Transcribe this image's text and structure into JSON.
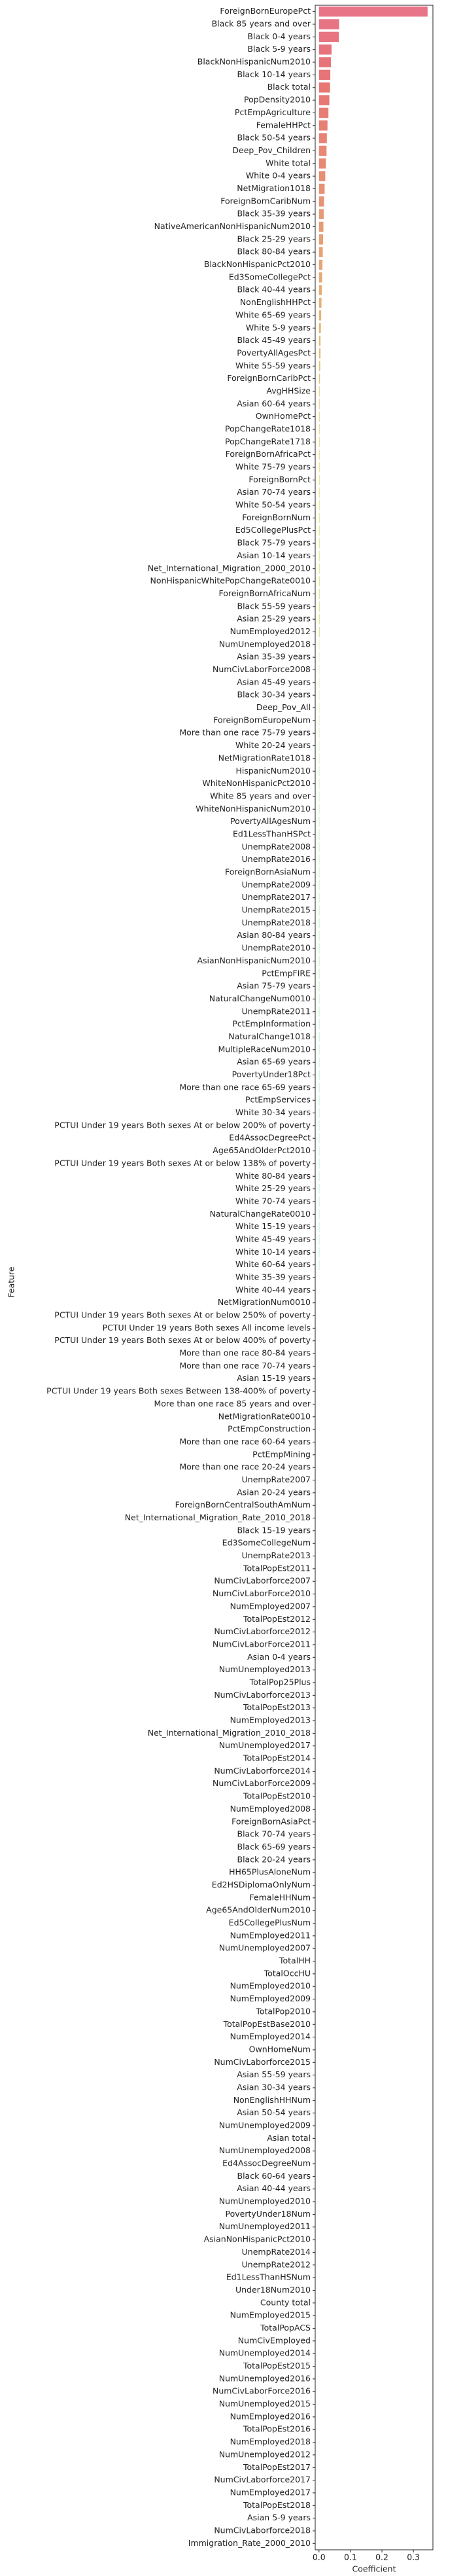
{
  "chart_data": {
    "type": "barh",
    "xlabel": "Coefficient",
    "ylabel": "Feature",
    "palette": "husl",
    "xlim": [
      -0.012,
      0.362
    ],
    "xticks": [
      {
        "value": 0,
        "label": "0.0"
      },
      0.1,
      0.2,
      0.3
    ],
    "categories": [
      "ForeignBornEuropePct",
      "Black 85 years and over",
      "Black 0-4 years",
      "Black 5-9 years",
      "BlackNonHispanicNum2010",
      "Black 10-14 years",
      "Black total",
      "PopDensity2010",
      "PctEmpAgriculture",
      "FemaleHHPct",
      "Black 50-54 years",
      "Deep_Pov_Children",
      "White total",
      "White 0-4 years",
      "NetMigration1018",
      "ForeignBornCaribNum",
      "Black 35-39 years",
      "NativeAmericanNonHispanicNum2010",
      "Black 25-29 years",
      "Black 80-84 years",
      "BlackNonHispanicPct2010",
      "Ed3SomeCollegePct",
      "Black 40-44 years",
      "NonEnglishHHPct",
      "White 65-69 years",
      "White 5-9 years",
      "Black 45-49 years",
      "PovertyAllAgesPct",
      "White 55-59 years",
      "ForeignBornCaribPct",
      "AvgHHSize",
      "Asian 60-64 years",
      "OwnHomePct",
      "PopChangeRate1018",
      "PopChangeRate1718",
      "ForeignBornAfricaPct",
      "White 75-79 years",
      "ForeignBornPct",
      "Asian 70-74 years",
      "White 50-54 years",
      "ForeignBornNum",
      "Ed5CollegePlusPct",
      "Black 75-79 years",
      "Asian 10-14 years",
      "Net_International_Migration_2000_2010",
      "NonHispanicWhitePopChangeRate0010",
      "ForeignBornAfricaNum",
      "Black 55-59 years",
      "Asian 25-29 years",
      "NumEmployed2012",
      "NumUnemployed2018",
      "Asian 35-39 years",
      "NumCivLaborForce2008",
      "Asian 45-49 years",
      "Black 30-34 years",
      "Deep_Pov_All",
      "ForeignBornEuropeNum",
      "More than one race 75-79 years",
      "White 20-24 years",
      "NetMigrationRate1018",
      "HispanicNum2010",
      "WhiteNonHispanicPct2010",
      "White 85 years and over",
      "WhiteNonHispanicNum2010",
      "PovertyAllAgesNum",
      "Ed1LessThanHSPct",
      "UnempRate2008",
      "UnempRate2016",
      "ForeignBornAsiaNum",
      "UnempRate2009",
      "UnempRate2017",
      "UnempRate2015",
      "UnempRate2018",
      "Asian 80-84 years",
      "UnempRate2010",
      "AsianNonHispanicNum2010",
      "PctEmpFIRE",
      "Asian 75-79 years",
      "NaturalChangeNum0010",
      "UnempRate2011",
      "PctEmpInformation",
      "NaturalChange1018",
      "MultipleRaceNum2010",
      "Asian 65-69 years",
      "PovertyUnder18Pct",
      "More than one race 65-69 years",
      "PctEmpServices",
      "White 30-34 years",
      "PCTUI Under 19 years Both sexes At or below 200% of poverty",
      "Ed4AssocDegreePct",
      "Age65AndOlderPct2010",
      "PCTUI Under 19 years Both sexes At or below 138% of poverty",
      "White 80-84 years",
      "White 25-29 years",
      "White 70-74 years",
      "NaturalChangeRate0010",
      "White 15-19 years",
      "White 45-49 years",
      "White 10-14 years",
      "White 60-64 years",
      "White 35-39 years",
      "White 40-44 years",
      "NetMigrationNum0010",
      "PCTUI Under 19 years Both sexes At or below 250% of poverty",
      "PCTUI Under 19 years Both sexes All income levels",
      "PCTUI Under 19 years Both sexes At or below 400% of poverty",
      "More than one race 80-84 years",
      "More than one race 70-74 years",
      "Asian 15-19 years",
      "PCTUI Under 19 years Both sexes Between 138-400% of poverty",
      "More than one race 85 years and over",
      "NetMigrationRate0010",
      "PctEmpConstruction",
      "More than one race 60-64 years",
      "PctEmpMining",
      "More than one race 20-24 years",
      "UnempRate2007",
      "Asian 20-24 years",
      "ForeignBornCentralSouthAmNum",
      "Net_International_Migration_Rate_2010_2018",
      "Black 15-19 years",
      "Ed3SomeCollegeNum",
      "UnempRate2013",
      "TotalPopEst2011",
      "NumCivLaborforce2007",
      "NumCivLaborForce2010",
      "NumEmployed2007",
      "TotalPopEst2012",
      "NumCivLaborforce2012",
      "NumCivLaborForce2011",
      "Asian 0-4 years",
      "NumUnemployed2013",
      "TotalPop25Plus",
      "NumCivLaborforce2013",
      "TotalPopEst2013",
      "NumEmployed2013",
      "Net_International_Migration_2010_2018",
      "NumUnemployed2017",
      "TotalPopEst2014",
      "NumCivLaborforce2014",
      "NumCivLaborForce2009",
      "TotalPopEst2010",
      "NumEmployed2008",
      "ForeignBornAsiaPct",
      "Black 70-74 years",
      "Black 65-69 years",
      "Black 20-24 years",
      "HH65PlusAloneNum",
      "Ed2HSDiplomaOnlyNum",
      "FemaleHHNum",
      "Age65AndOlderNum2010",
      "Ed5CollegePlusNum",
      "NumEmployed2011",
      "NumUnemployed2007",
      "TotalHH",
      "TotalOccHU",
      "NumEmployed2010",
      "NumEmployed2009",
      "TotalPop2010",
      "TotalPopEstBase2010",
      "NumEmployed2014",
      "OwnHomeNum",
      "NumCivLaborforce2015",
      "Asian 55-59 years",
      "Asian 30-34 years",
      "NonEnglishHHNum",
      "Asian 50-54 years",
      "NumUnemployed2009",
      "Asian total",
      "NumUnemployed2008",
      "Ed4AssocDegreeNum",
      "Black 60-64 years",
      "Asian 40-44 years",
      "NumUnemployed2010",
      "PovertyUnder18Num",
      "NumUnemployed2011",
      "AsianNonHispanicPct2010",
      "UnempRate2014",
      "UnempRate2012",
      "Ed1LessThanHSNum",
      "Under18Num2010",
      "County total",
      "NumEmployed2015",
      "TotalPopACS",
      "NumCivEmployed",
      "NumUnemployed2014",
      "TotalPopEst2015",
      "NumUnemployed2016",
      "NumCivLaborForce2016",
      "NumUnemployed2015",
      "NumEmployed2016",
      "TotalPopEst2016",
      "NumEmployed2018",
      "NumUnemployed2012",
      "TotalPopEst2017",
      "NumCivLaborforce2017",
      "NumEmployed2017",
      "TotalPopEst2018",
      "Asian 5-9 years",
      "NumCivLaborforce2018",
      "Immigration_Rate_2000_2010"
    ],
    "values": [
      0.345,
      0.064,
      0.063,
      0.04,
      0.038,
      0.036,
      0.035,
      0.033,
      0.03,
      0.027,
      0.025,
      0.024,
      0.022,
      0.02,
      0.018,
      0.016,
      0.015,
      0.014,
      0.013,
      0.012,
      0.011,
      0.01,
      0.009,
      0.008,
      0.007,
      0.006,
      0.005,
      0.005,
      0.004,
      0.003,
      0.002,
      0.002,
      0.002,
      0.002,
      0.002,
      0.002,
      0.002,
      0.002,
      0.002,
      0.002,
      0.002,
      0.002,
      0.002,
      0.002,
      0.002,
      0.002,
      0.002,
      0.002,
      0.002,
      0.002,
      0.001,
      0.001,
      0.001,
      0.001,
      0.001,
      0.001,
      0.001,
      0.001,
      0.001,
      0.001,
      0.001,
      0.001,
      0.001,
      0.001,
      0.001,
      0.001,
      0.001,
      0.001,
      0.001,
      0.001,
      0.001,
      0.001,
      0.001,
      0.001,
      0.001,
      0.001,
      0.001,
      0.001,
      0.001,
      0.001,
      0.001,
      0.001,
      0.001,
      0.001,
      0.001,
      0.001,
      0.001,
      0.001,
      0.001,
      0.001,
      0.001,
      0.001,
      0.001,
      0.001,
      0.001,
      0.001,
      0.001,
      0.001,
      0.001,
      0.001,
      0,
      0,
      0,
      0,
      0,
      0,
      0,
      0,
      0,
      0,
      0,
      0,
      0,
      0,
      0,
      0,
      0,
      0,
      0,
      0,
      0,
      0,
      0,
      0,
      0,
      0,
      0,
      0,
      0,
      0,
      0,
      0,
      0,
      0,
      0,
      0,
      0,
      0,
      0,
      0,
      0,
      0,
      0,
      0,
      0,
      0,
      0,
      0,
      0,
      0,
      0,
      0,
      0,
      0,
      0,
      0,
      0,
      0,
      0,
      0,
      0,
      0,
      0,
      0,
      0,
      0,
      0,
      0,
      0,
      0,
      0,
      0,
      0,
      0,
      0,
      0,
      0,
      0,
      0,
      0,
      0,
      0,
      0,
      0,
      0,
      0,
      0,
      0,
      0,
      0,
      0,
      0,
      0,
      0,
      0,
      0,
      0,
      0,
      0,
      0,
      0
    ]
  }
}
